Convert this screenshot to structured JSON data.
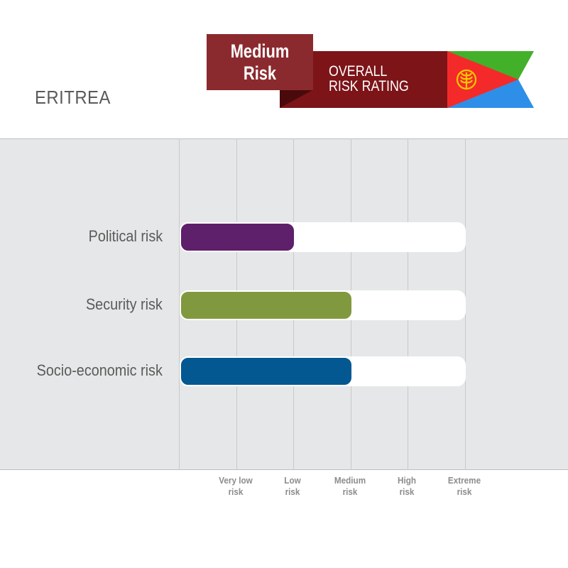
{
  "country": "ERITREA",
  "overall": {
    "rating_line1": "Medium",
    "rating_line2": "Risk",
    "label_line1": "OVERALL",
    "label_line2": "RISK RATING"
  },
  "flag": {
    "icon": "eritrea-flag-icon",
    "colors": {
      "green": "#43b02a",
      "red": "#f42a2a",
      "blue": "#2e8fe8",
      "emblem": "#f5c800"
    }
  },
  "colors": {
    "badge": "#8b2a2e",
    "ribbon": "#7c1418",
    "panel": "#e6e7e8"
  },
  "chart_data": {
    "type": "bar",
    "orientation": "horizontal",
    "categories": [
      "Political risk",
      "Security risk",
      "Socio-economic risk"
    ],
    "scale": [
      "Very low risk",
      "Low risk",
      "Medium risk",
      "High risk",
      "Extreme risk"
    ],
    "values": [
      2,
      3,
      3
    ],
    "xlim": [
      0,
      5
    ],
    "bar_colors": [
      "#5e1f6b",
      "#81993e",
      "#035891"
    ],
    "grid": true
  }
}
